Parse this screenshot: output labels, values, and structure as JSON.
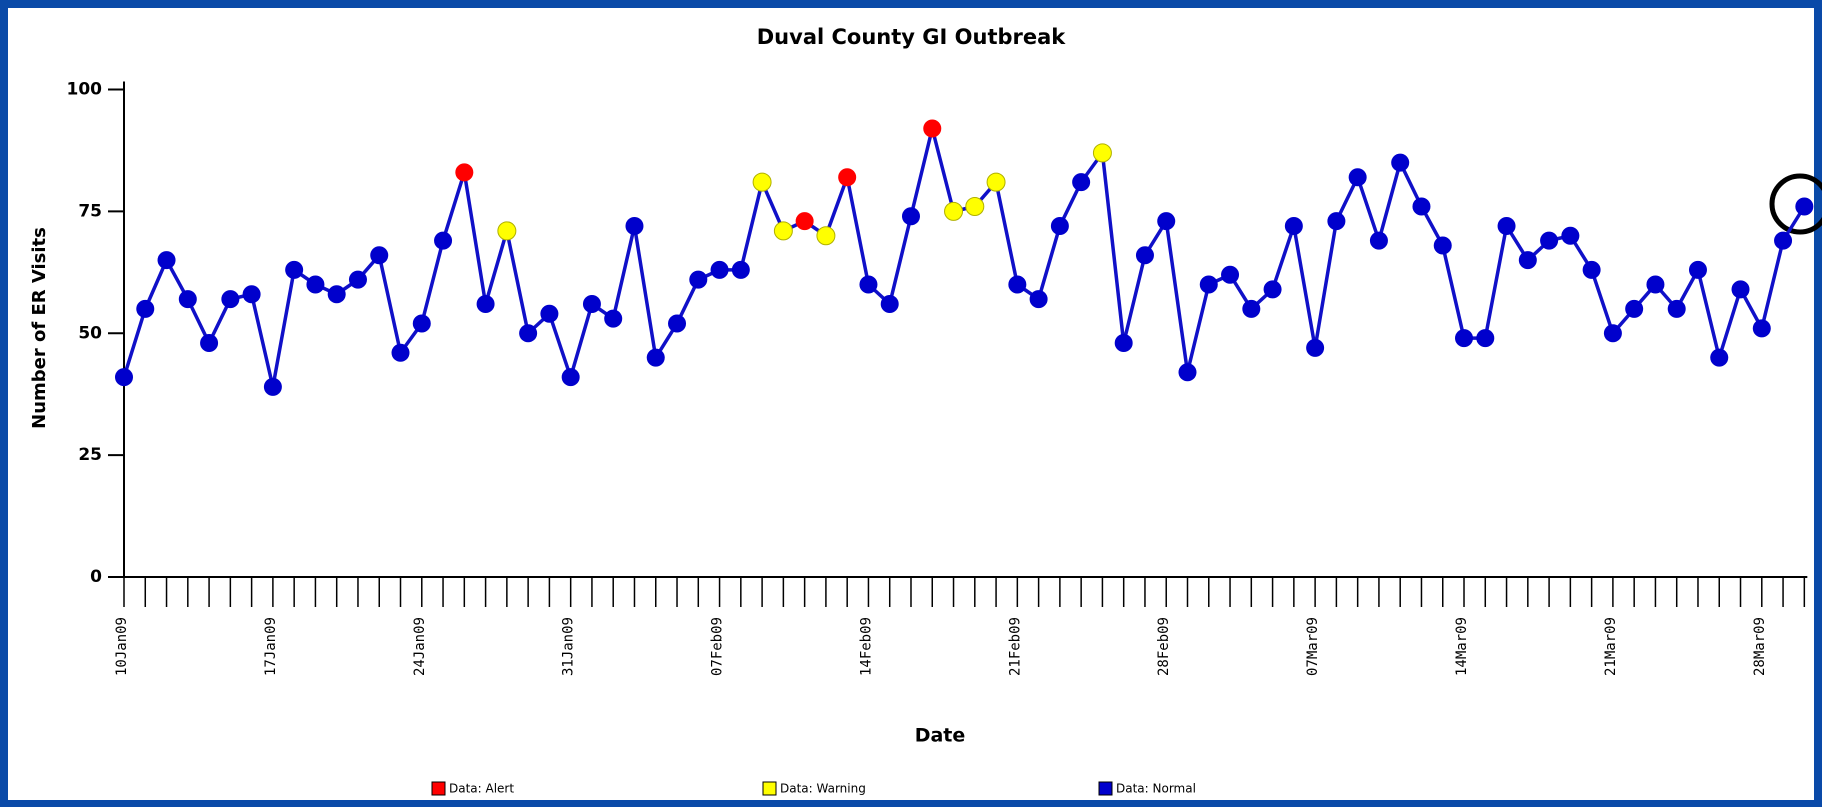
{
  "chart_data": {
    "type": "line",
    "title": "Duval County GI Outbreak",
    "xlabel": "Date",
    "ylabel": "Number of ER Visits",
    "categories": [
      "10Jan09",
      null,
      null,
      null,
      null,
      null,
      null,
      "17Jan09",
      null,
      null,
      null,
      null,
      null,
      null,
      "24Jan09",
      null,
      null,
      null,
      null,
      null,
      null,
      "31Jan09",
      null,
      null,
      null,
      null,
      null,
      null,
      "07Feb09",
      null,
      null,
      null,
      null,
      null,
      null,
      "14Feb09",
      null,
      null,
      null,
      null,
      null,
      null,
      "21Feb09",
      null,
      null,
      null,
      null,
      null,
      null,
      "28Feb09",
      null,
      null,
      null,
      null,
      null,
      null,
      "07Mar09",
      null,
      null,
      null,
      null,
      null,
      null,
      "14Mar09",
      null,
      null,
      null,
      null,
      null,
      null,
      "21Mar09",
      null,
      null,
      null,
      null,
      null,
      null,
      "28Mar09",
      null,
      null
    ],
    "line_color": "#1010c8",
    "series": [
      {
        "name": "Data: Alert",
        "color": "#ff0000",
        "values": [
          null,
          null,
          null,
          null,
          null,
          null,
          null,
          null,
          null,
          null,
          null,
          null,
          null,
          null,
          null,
          null,
          83,
          null,
          null,
          null,
          null,
          null,
          null,
          null,
          null,
          null,
          null,
          null,
          null,
          null,
          null,
          null,
          73,
          null,
          82,
          null,
          null,
          null,
          92,
          null,
          null,
          null,
          null,
          null,
          null,
          null,
          null,
          null,
          null,
          null,
          null,
          null,
          null,
          null,
          null,
          null,
          null,
          null,
          null,
          null,
          null,
          null,
          null,
          null,
          null,
          null,
          null,
          null,
          null,
          null,
          null,
          null,
          null,
          null,
          null,
          null,
          null,
          null,
          null,
          null
        ]
      },
      {
        "name": "Data: Warning",
        "color": "#ffff00",
        "values": [
          null,
          null,
          null,
          null,
          null,
          null,
          null,
          null,
          null,
          null,
          null,
          null,
          null,
          null,
          null,
          null,
          null,
          null,
          71,
          null,
          null,
          null,
          null,
          null,
          null,
          null,
          null,
          null,
          null,
          null,
          81,
          71,
          null,
          70,
          null,
          null,
          null,
          null,
          null,
          75,
          76,
          81,
          null,
          null,
          null,
          null,
          87,
          null,
          null,
          null,
          null,
          null,
          null,
          null,
          null,
          null,
          null,
          null,
          null,
          null,
          null,
          null,
          null,
          null,
          null,
          null,
          null,
          null,
          null,
          null,
          null,
          null,
          null,
          null,
          null,
          null,
          null,
          null,
          null,
          null
        ]
      },
      {
        "name": "Data: Normal",
        "color": "#0000cc",
        "values": [
          41,
          55,
          65,
          57,
          48,
          57,
          58,
          39,
          63,
          60,
          58,
          61,
          66,
          46,
          52,
          69,
          null,
          56,
          null,
          50,
          54,
          41,
          56,
          53,
          72,
          45,
          52,
          61,
          63,
          63,
          null,
          null,
          null,
          null,
          null,
          60,
          56,
          74,
          null,
          null,
          null,
          null,
          60,
          57,
          72,
          81,
          null,
          48,
          66,
          73,
          42,
          60,
          62,
          55,
          59,
          72,
          47,
          73,
          82,
          69,
          85,
          76,
          68,
          49,
          49,
          72,
          65,
          69,
          70,
          63,
          50,
          55,
          60,
          55,
          63,
          45,
          59,
          51,
          69,
          76
        ]
      }
    ],
    "ylim": [
      0,
      100
    ],
    "yticks": [
      0,
      25,
      50,
      75,
      100
    ]
  }
}
